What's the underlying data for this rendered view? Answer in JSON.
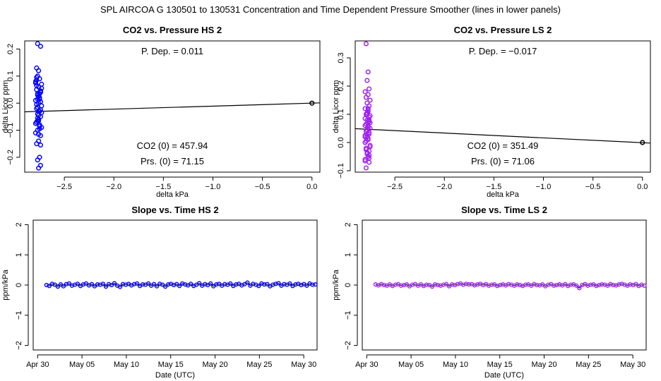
{
  "page": {
    "title": "SPL    AIRCOA G    130501 to 130531    Concentration and Time Dependent Pressure Smoother (lines in lower panels)"
  },
  "colors": {
    "hs": "#0000ff",
    "ls": "#a020f0",
    "axis": "#000000",
    "fit": "#000000"
  },
  "chart_data": [
    {
      "id": "top_left",
      "type": "scatter",
      "title": "CO2 vs. Pressure HS 2",
      "xlabel": "delta kPa",
      "ylabel": "delta Licor ppm",
      "xlim": [
        -2.9,
        0.08
      ],
      "ylim": [
        -0.255,
        0.23
      ],
      "xticks": [
        -2.5,
        -2.0,
        -1.5,
        -1.0,
        -0.5,
        0.0
      ],
      "xtick_labels": [
        "−2.5",
        "−2.0",
        "−1.5",
        "−1.0",
        "−0.5",
        "0.0"
      ],
      "yticks": [
        -0.2,
        -0.1,
        0.0,
        0.1,
        0.2
      ],
      "ytick_labels": [
        "−0.2",
        "−0.1",
        "0.0",
        "0.1",
        "0.2"
      ],
      "fit_line": {
        "x": [
          -2.9,
          0.08
        ],
        "y": [
          -0.032,
          0.001
        ]
      },
      "reference_point": {
        "x": 0.0,
        "y": 0.0
      },
      "annotations": [
        "P. Dep. =  0.011",
        "CO2 (0) =  457.94",
        "Prs. (0) =  71.15"
      ],
      "color_key": "hs",
      "points": {
        "x": [
          -2.77,
          -2.74,
          -2.78,
          -2.76,
          -2.77,
          -2.75,
          -2.79,
          -2.73,
          -2.76,
          -2.78,
          -2.74,
          -2.77,
          -2.75,
          -2.79,
          -2.76,
          -2.73,
          -2.78,
          -2.75,
          -2.77,
          -2.74,
          -2.76,
          -2.78,
          -2.75,
          -2.73,
          -2.77,
          -2.79,
          -2.74,
          -2.76,
          -2.78,
          -2.75,
          -2.77,
          -2.74,
          -2.76,
          -2.79,
          -2.73,
          -2.77,
          -2.75,
          -2.78,
          -2.74,
          -2.76,
          -2.77,
          -2.75,
          -2.78,
          -2.74,
          -2.76,
          -2.73,
          -2.77,
          -2.79,
          -2.75,
          -2.76,
          -2.74,
          -2.78,
          -2.77,
          -2.75,
          -2.76,
          -2.74,
          -2.78,
          -2.75,
          -2.77,
          -2.76
        ],
        "y": [
          0.22,
          0.21,
          0.13,
          0.12,
          0.1,
          0.09,
          0.08,
          0.07,
          0.06,
          0.05,
          0.04,
          0.03,
          0.02,
          0.01,
          0.0,
          -0.01,
          -0.02,
          -0.03,
          -0.04,
          -0.05,
          -0.06,
          -0.07,
          -0.08,
          -0.09,
          -0.1,
          -0.11,
          -0.12,
          -0.14,
          -0.15,
          -0.2,
          -0.21,
          -0.23,
          -0.24,
          0.075,
          0.055,
          0.035,
          0.015,
          -0.005,
          -0.025,
          -0.045,
          -0.065,
          -0.085,
          0.065,
          0.045,
          0.025,
          -0.035,
          -0.055,
          -0.075,
          -0.095,
          -0.115,
          0.005,
          0.085,
          -0.015,
          0.035,
          -0.065,
          -0.155,
          0.095,
          -0.085,
          0.015,
          -0.03
        ]
      }
    },
    {
      "id": "top_right",
      "type": "scatter",
      "title": "CO2 vs. Pressure LS 2",
      "xlabel": "delta kPa",
      "ylabel": "delta Licor ppm",
      "xlim": [
        -2.9,
        0.08
      ],
      "ylim": [
        -0.105,
        0.36
      ],
      "xticks": [
        -2.5,
        -2.0,
        -1.5,
        -1.0,
        -0.5,
        0.0
      ],
      "xtick_labels": [
        "−2.5",
        "−2.0",
        "−1.5",
        "−1.0",
        "−0.5",
        "0.0"
      ],
      "yticks": [
        -0.1,
        0.0,
        0.1,
        0.2,
        0.3
      ],
      "ytick_labels": [
        "−0.1",
        "0.0",
        "0.1",
        "0.2",
        "0.3"
      ],
      "fit_line": {
        "x": [
          -2.9,
          0.08
        ],
        "y": [
          0.049,
          -0.002
        ]
      },
      "reference_point": {
        "x": 0.0,
        "y": 0.0
      },
      "annotations": [
        "P. Dep. =  −0.017",
        "CO2 (0) =  351.49",
        "Prs. (0) =  71.06"
      ],
      "color_key": "ls",
      "points": {
        "x": [
          -2.79,
          -2.77,
          -2.78,
          -2.76,
          -2.8,
          -2.77,
          -2.79,
          -2.75,
          -2.78,
          -2.76,
          -2.8,
          -2.77,
          -2.79,
          -2.76,
          -2.78,
          -2.75,
          -2.8,
          -2.77,
          -2.79,
          -2.76,
          -2.78,
          -2.77,
          -2.8,
          -2.75,
          -2.79,
          -2.76,
          -2.78,
          -2.77,
          -2.8,
          -2.76,
          -2.79,
          -2.77,
          -2.78,
          -2.75,
          -2.8,
          -2.76,
          -2.79,
          -2.77,
          -2.78,
          -2.76,
          -2.8,
          -2.77,
          -2.79,
          -2.75,
          -2.78,
          -2.76,
          -2.77,
          -2.79,
          -2.8,
          -2.76,
          -2.78,
          -2.77,
          -2.79,
          -2.76,
          -2.78,
          -2.77,
          -2.75,
          -2.8
        ],
        "y": [
          0.35,
          0.25,
          0.22,
          0.19,
          0.18,
          0.17,
          0.16,
          0.15,
          0.14,
          0.13,
          0.12,
          0.11,
          0.1,
          0.09,
          0.08,
          0.07,
          0.06,
          0.05,
          0.04,
          0.03,
          0.02,
          0.01,
          0.0,
          -0.01,
          -0.02,
          -0.03,
          -0.04,
          -0.05,
          -0.06,
          -0.07,
          -0.09,
          0.115,
          0.105,
          0.095,
          0.085,
          0.075,
          0.065,
          0.055,
          0.045,
          0.035,
          0.025,
          0.015,
          0.005,
          -0.015,
          -0.035,
          -0.055,
          0.06,
          0.04,
          0.02,
          0.08,
          0.1,
          0.12,
          -0.025,
          -0.045,
          0.03,
          0.07,
          0.05,
          -0.065
        ]
      }
    },
    {
      "id": "bottom_left",
      "type": "line",
      "title": "Slope vs. Time HS 2",
      "xlabel": "Date (UTC)",
      "ylabel": "ppm/kPa",
      "xlim": [
        -0.5,
        31.5
      ],
      "ylim": [
        -2.15,
        2.15
      ],
      "xticks": [
        0,
        5,
        10,
        15,
        20,
        25,
        30
      ],
      "xtick_labels": [
        "Apr 30",
        "May 05",
        "May 10",
        "May 15",
        "May 20",
        "May 25",
        "May 30"
      ],
      "yticks": [
        -2,
        -1,
        0,
        1,
        2
      ],
      "ytick_labels": [
        "−2",
        "−1",
        "0",
        "1",
        "2"
      ],
      "color_key": "hs",
      "series_x_range": [
        1.0,
        31.3
      ],
      "values": [
        0.0,
        -0.03,
        0.04,
        0.01,
        -0.05,
        0.02,
        -0.04,
        0.03,
        0.05,
        -0.02,
        0.01,
        0.04,
        -0.03,
        0.02,
        0.05,
        -0.01,
        0.03,
        -0.04,
        0.02,
        0.01,
        0.04,
        -0.05,
        0.03,
        0.0,
        0.06,
        -0.02,
        -0.06,
        0.03,
        0.01,
        0.04,
        -0.01,
        0.03,
        0.05,
        -0.03,
        0.02,
        0.01,
        0.05,
        -0.02,
        0.03,
        -0.04,
        0.04,
        0.01,
        -0.05,
        0.02,
        0.04,
        0.0,
        0.03,
        -0.03,
        0.05,
        0.02,
        -0.01,
        0.04,
        -0.03,
        0.01,
        0.06,
        -0.02,
        0.03,
        0.0,
        0.05,
        -0.04,
        0.02,
        0.04,
        -0.02,
        0.03,
        0.01,
        0.05,
        -0.03,
        0.02,
        0.04,
        -0.01,
        0.03,
        0.08,
        -0.02,
        0.04,
        0.01,
        -0.03,
        0.05,
        0.02,
        0.03,
        -0.04,
        0.01,
        0.04,
        0.06,
        -0.02,
        0.03,
        0.01,
        0.05,
        -0.03,
        0.02,
        0.04,
        0.0,
        0.03,
        -0.02,
        0.05,
        0.01,
        0.02
      ]
    },
    {
      "id": "bottom_right",
      "type": "line",
      "title": "Slope vs. Time LS 2",
      "xlabel": "Date (UTC)",
      "ylabel": "ppm/kPa",
      "xlim": [
        -0.5,
        31.5
      ],
      "ylim": [
        -2.15,
        2.15
      ],
      "xticks": [
        0,
        5,
        10,
        15,
        20,
        25,
        30
      ],
      "xtick_labels": [
        "Apr 30",
        "May 05",
        "May 10",
        "May 15",
        "May 20",
        "May 25",
        "May 30"
      ],
      "yticks": [
        -2,
        -1,
        0,
        1,
        2
      ],
      "ytick_labels": [
        "−2",
        "−1",
        "0",
        "1",
        "2"
      ],
      "color_key": "ls",
      "series_x_range": [
        1.0,
        31.3
      ],
      "values": [
        0.02,
        -0.01,
        0.03,
        0.0,
        -0.02,
        0.02,
        -0.03,
        0.01,
        0.03,
        -0.02,
        0.0,
        0.02,
        -0.04,
        0.01,
        0.03,
        -0.02,
        0.02,
        -0.03,
        0.01,
        0.0,
        -0.05,
        0.02,
        0.0,
        -0.02,
        0.01,
        0.03,
        -0.04,
        0.02,
        0.0,
        0.03,
        0.05,
        0.01,
        0.04,
        0.02,
        0.03,
        -0.01,
        0.02,
        0.04,
        0.0,
        0.03,
        -0.02,
        0.01,
        0.02,
        -0.03,
        0.0,
        0.02,
        -0.01,
        0.03,
        0.01,
        -0.02,
        0.02,
        0.0,
        -0.03,
        0.01,
        0.02,
        -0.02,
        0.03,
        0.0,
        -0.01,
        0.02,
        -0.04,
        0.01,
        0.03,
        -0.02,
        0.0,
        0.02,
        -0.01,
        0.03,
        -0.03,
        0.01,
        0.02,
        -0.02,
        -0.1,
        0.0,
        0.03,
        -0.02,
        0.01,
        0.02,
        -0.03,
        0.0,
        0.02,
        0.01,
        -0.02,
        0.03,
        0.0,
        -0.01,
        0.02,
        0.04,
        0.01,
        -0.02,
        0.02,
        0.0,
        0.03,
        -0.03,
        0.01,
        -0.02
      ]
    }
  ]
}
